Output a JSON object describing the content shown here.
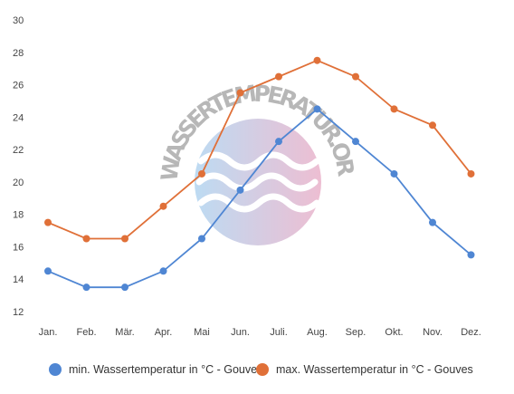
{
  "chart_data": {
    "type": "line",
    "categories": [
      "Jan.",
      "Feb.",
      "Mär.",
      "Apr.",
      "Mai",
      "Jun.",
      "Juli.",
      "Aug.",
      "Sep.",
      "Okt.",
      "Nov.",
      "Dez."
    ],
    "series": [
      {
        "name": "min. Wassertemperatur in °C - Gouves",
        "color": "#4f86d3",
        "values": [
          14.5,
          13.5,
          13.5,
          14.5,
          16.5,
          19.5,
          22.5,
          24.5,
          22.5,
          20.5,
          17.5,
          15.5
        ]
      },
      {
        "name": "max. Wassertemperatur in °C - Gouves",
        "color": "#e07038",
        "values": [
          17.5,
          16.5,
          16.5,
          18.5,
          20.5,
          25.5,
          26.5,
          27.5,
          26.5,
          24.5,
          23.5,
          20.5
        ]
      }
    ],
    "yticks": [
      "12",
      "14",
      "16",
      "18",
      "20",
      "22",
      "24",
      "26",
      "28",
      "30"
    ],
    "ylim": [
      12,
      30
    ],
    "grid": false,
    "legend": "bottom"
  },
  "watermark": {
    "text": "WASSERTEMPERATUR.ORG",
    "colors": [
      "#a7cfee",
      "#e7a8c3"
    ]
  }
}
